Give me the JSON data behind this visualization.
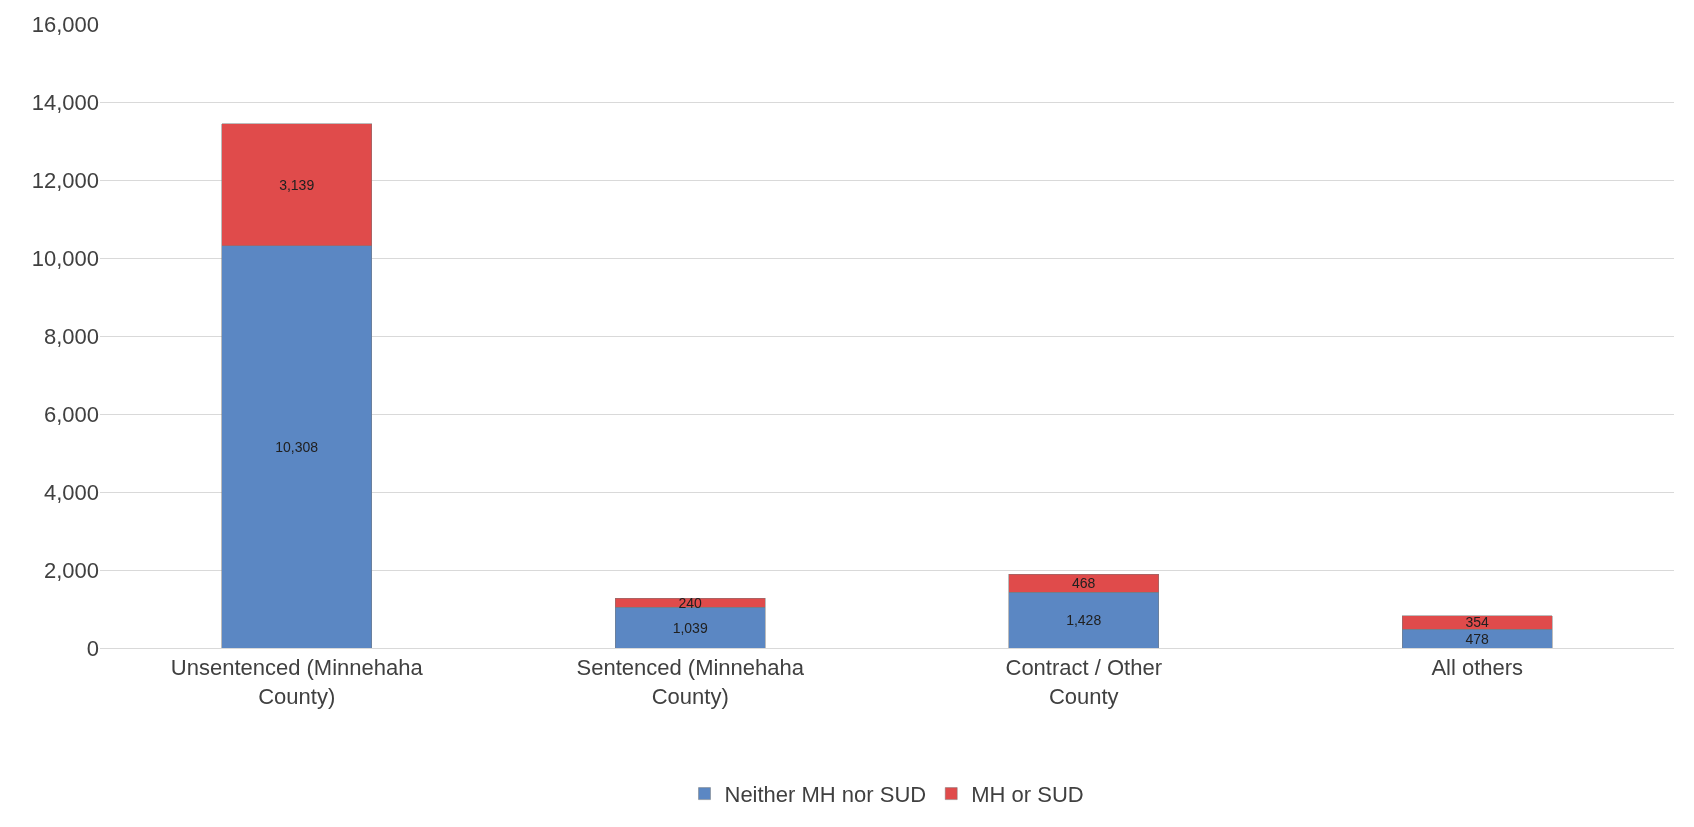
{
  "chart_data": {
    "type": "bar",
    "stacked": true,
    "categories": [
      "Unsentenced (Minnehaha County)",
      "Sentenced (Minnehaha County)",
      "Contract / Other County",
      "All others"
    ],
    "series": [
      {
        "name": "Neither MH nor SUD",
        "color": "#5b87c3",
        "values": [
          10308,
          1039,
          1428,
          478
        ],
        "value_labels": [
          "10,308",
          "1,039",
          "1,428",
          "478"
        ]
      },
      {
        "name": "MH or SUD",
        "color": "#e04b4b",
        "values": [
          3139,
          240,
          468,
          354
        ],
        "value_labels": [
          "3,139",
          "240",
          "468",
          "354"
        ]
      }
    ],
    "ylim": [
      0,
      16000
    ],
    "yticks": [
      {
        "value": 0,
        "label": "0"
      },
      {
        "value": 2000,
        "label": "2,000"
      },
      {
        "value": 4000,
        "label": "4,000"
      },
      {
        "value": 6000,
        "label": "6,000"
      },
      {
        "value": 8000,
        "label": "8,000"
      },
      {
        "value": 10000,
        "label": "10,000"
      },
      {
        "value": 12000,
        "label": "12,000"
      },
      {
        "value": 14000,
        "label": "14,000"
      },
      {
        "value": 16000,
        "label": "16,000"
      }
    ],
    "grid": "y",
    "legend": "bottom"
  }
}
